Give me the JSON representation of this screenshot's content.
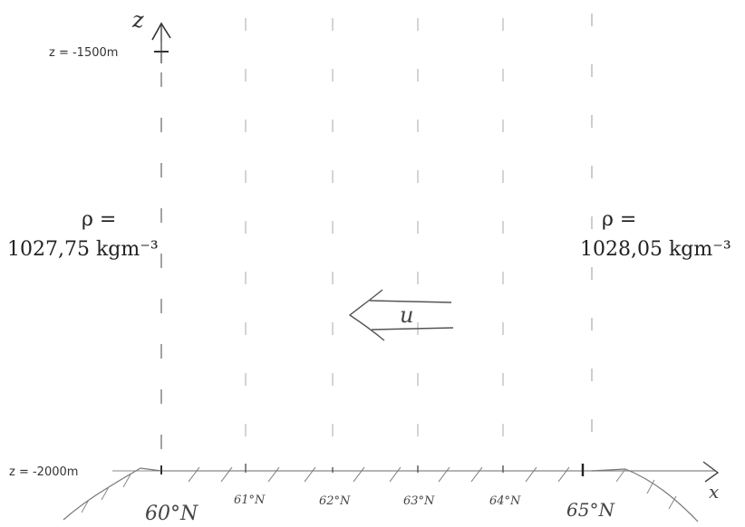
{
  "axes": {
    "vertical_label": "z",
    "horizontal_label": "x"
  },
  "depth_labels": {
    "top": "z = -1500m",
    "bottom": "z = -2000m"
  },
  "latitudes": [
    "60°N",
    "61°N",
    "62°N",
    "63°N",
    "64°N",
    "65°N"
  ],
  "density_left": {
    "symbol": "ρ =",
    "value": "1027,75 kgm⁻³"
  },
  "density_right": {
    "symbol": "ρ =",
    "value": "1028,05 kgm⁻³"
  },
  "flow": {
    "label": "u"
  }
}
